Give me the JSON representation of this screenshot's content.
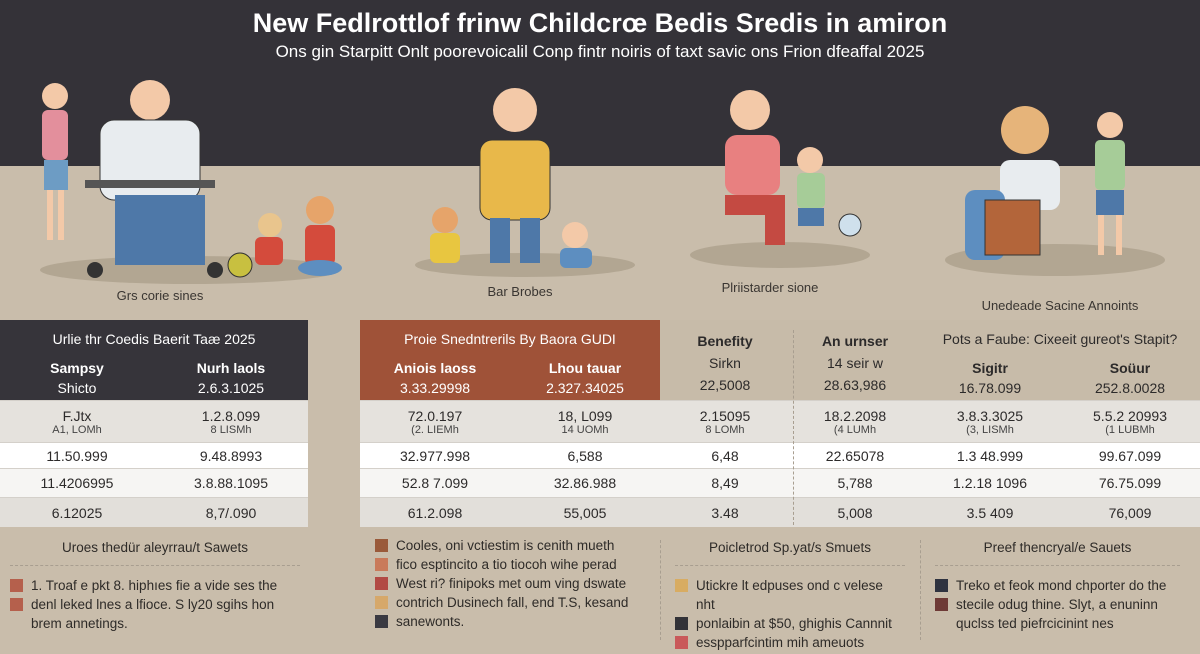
{
  "header": {
    "title": "New Fedlrottlof frinw Childcrœ Bedis Sredis in amiron",
    "subtitle": "Ons gin Starpitt Onlt poorevoicalil Conp fintr noiris of taxt savic ons Frion dfeaffal 2025"
  },
  "illustrations": [
    {
      "icon": "family-with-wheelchair-illustration",
      "caption": "Grs corie sines"
    },
    {
      "icon": "father-with-children-illustration",
      "caption": "Bar Brobes"
    },
    {
      "icon": "mother-with-child-illustration",
      "caption": "Plriistarder sione"
    },
    {
      "icon": "child-with-walker-illustration",
      "caption": "Unedeade Sacine Annoints"
    }
  ],
  "colors": {
    "header_bg": "#343238",
    "background": "#c9bdab",
    "panel1_header": "#36343a",
    "panel2_header": "#9f5238",
    "panel_header_beige": "#c7bba9"
  },
  "tables": [
    {
      "title": "Urlie thr Coedis Baerit Taæ 2025",
      "header_bg": "#36343a",
      "header_color": "#ffffff",
      "header_rows": [
        [
          "Sampsy",
          "Nurh laols"
        ],
        [
          "Shicto",
          "2.6.3.1025"
        ]
      ],
      "rows": [
        [
          [
            "F.Jtx",
            "A1, LOMh"
          ],
          [
            "1.2.8.099",
            "8 LISMh"
          ]
        ],
        [
          [
            "11.50.999"
          ],
          [
            "9.48.8993"
          ]
        ],
        [
          [
            "11.4206995"
          ],
          [
            "3.8.88.1095"
          ]
        ],
        [
          [
            "6.12025"
          ],
          [
            "8,7/.090"
          ]
        ]
      ]
    },
    {
      "title": "Proie Snedntrerils By Baora GUDI",
      "header_bg": "#9f5238",
      "header_color": "#ffffff",
      "header_rows": [
        [
          "Aniois laoss",
          "Lhou tauar"
        ],
        [
          "3.33.29998",
          "2.327.34025"
        ]
      ],
      "rows": [
        [
          [
            "72.0.197",
            "(2. LIEMh"
          ],
          [
            "18, L099",
            "14 UOMh"
          ]
        ],
        [
          [
            "32.977.998"
          ],
          [
            "6,588"
          ]
        ],
        [
          [
            "52.8 7.099"
          ],
          [
            "32.86.988"
          ]
        ],
        [
          [
            "61.2.098"
          ],
          [
            "55,005"
          ]
        ]
      ]
    },
    {
      "title": "",
      "header_bg": "#c7bba9",
      "header_color": "#2c2a2a",
      "header_rows": [
        [
          "Benefity",
          "An urnser"
        ],
        [
          "Sirkn",
          "14 seir w"
        ],
        [
          "22,5008",
          "28.63,986"
        ]
      ],
      "rows": [
        [
          [
            "2.15095",
            "8 LOMh"
          ],
          [
            "18.2.2098",
            "(4 LUMh"
          ]
        ],
        [
          [
            "6,48"
          ],
          [
            "22.65078"
          ]
        ],
        [
          [
            "8,49"
          ],
          [
            "5,788"
          ]
        ],
        [
          [
            "3.48"
          ],
          [
            "5,008"
          ]
        ]
      ]
    },
    {
      "title": "Pots a Faube: Cixeeit gureot's Stapit?",
      "header_bg": "#c7bba9",
      "header_color": "#2c2a2a",
      "header_rows": [
        [
          "Sigitr",
          "Soüur"
        ],
        [
          "16.78.099",
          "252.8.0028"
        ]
      ],
      "rows": [
        [
          [
            "3.8.3.3025",
            "(3, LISMh"
          ],
          [
            "5.5.2 20993",
            "(1 LUBMh"
          ]
        ],
        [
          [
            "1.3 48.999"
          ],
          [
            "99.67.099"
          ]
        ],
        [
          [
            "1.2.18 1096"
          ],
          [
            "76.75.099"
          ]
        ],
        [
          [
            "3.5 409"
          ],
          [
            "76,009"
          ]
        ]
      ]
    }
  ],
  "notes": [
    {
      "heading": "Uroes thedür aleyrrau/t Sawets",
      "items": [
        {
          "color": "#b5604c",
          "text": "1. Troaf e pkt 8. hiphıes fie a vide ses the"
        },
        {
          "color": "#b5604c",
          "text": "denl leked lnes a lfioce. S ly20 sgihs hon brem annetings."
        }
      ]
    },
    {
      "heading": "",
      "items": [
        {
          "color": "#9a5a3a",
          "text": "Cooles, oni vctiestim is cenith mueth"
        },
        {
          "color": "#c97a5a",
          "text": "fico esptincito a tio tiocoh wihe perad"
        },
        {
          "color": "#b24a44",
          "text": "West ri? finipoks met oum ving dswate"
        },
        {
          "color": "#d6a86a",
          "text": "contrich Dusinech fall, end T.S, kesand"
        },
        {
          "color": "#3a3a42",
          "text": "sanewonts."
        }
      ]
    },
    {
      "heading": "Poicletrod Sp.yat/s Smuets",
      "items": [
        {
          "color": "#d8ac62",
          "text": "Utickre lt edpuses ond c velese nht"
        },
        {
          "color": "#333338",
          "text": "ponlaibin at $50, ghighis Cannnit"
        },
        {
          "color": "#c9595a",
          "text": "esspparfcintim mih ameuots"
        }
      ]
    },
    {
      "heading": "Preef thencryal/e Sauets",
      "items": [
        {
          "color": "#2f3340",
          "text": "Treko et feok mond chporter do the"
        },
        {
          "color": "#6e3a36",
          "text": "stecile odug thine. Slyt, a enuninn quclss ted piefrcicinint nes"
        }
      ]
    }
  ]
}
